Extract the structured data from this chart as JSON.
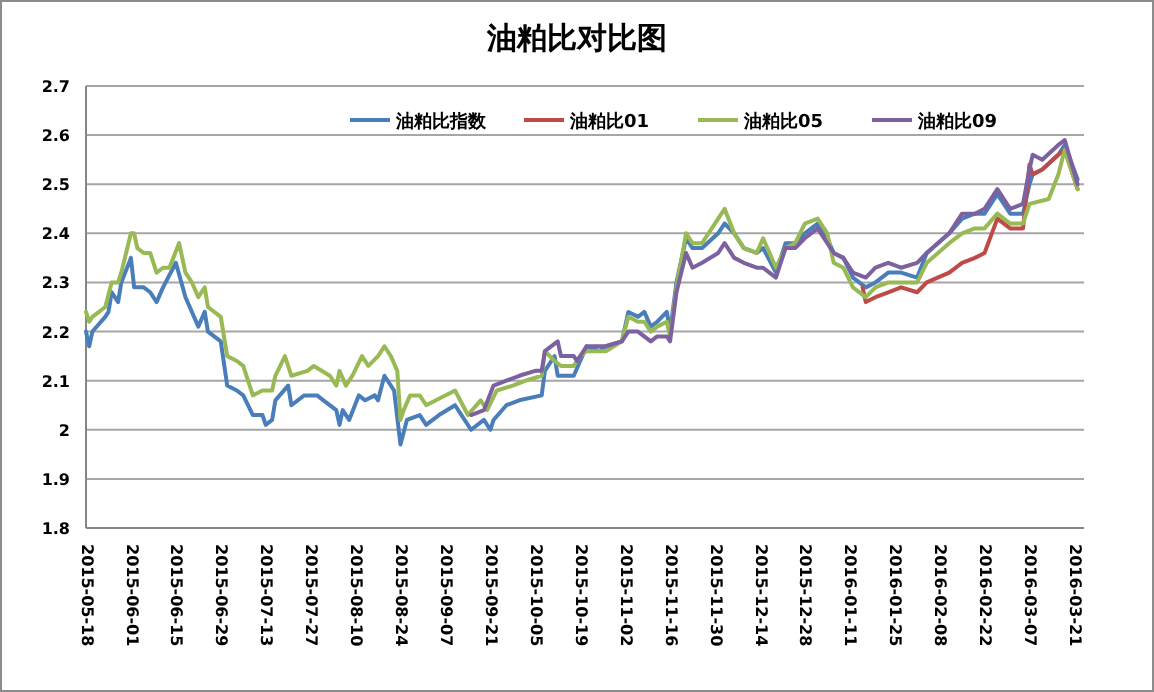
{
  "chart_data": {
    "type": "line",
    "title": "油粕比对比图",
    "xlim": [
      "2015-05-18",
      "2016-03-24"
    ],
    "xticks": [
      "2015-05-18",
      "2015-06-01",
      "2015-06-15",
      "2015-06-29",
      "2015-07-13",
      "2015-07-27",
      "2015-08-10",
      "2015-08-24",
      "2015-09-07",
      "2015-09-21",
      "2015-10-05",
      "2015-10-19",
      "2015-11-02",
      "2015-11-16",
      "2015-11-30",
      "2015-12-14",
      "2015-12-28",
      "2016-01-11",
      "2016-01-25",
      "2016-02-08",
      "2016-02-22",
      "2016-03-07",
      "2016-03-21"
    ],
    "ylim": [
      1.8,
      2.7
    ],
    "yticks": [
      1.8,
      1.9,
      2,
      2.1,
      2.2,
      2.3,
      2.4,
      2.5,
      2.6,
      2.7
    ],
    "grid": "y",
    "legend": "top",
    "marker": "none",
    "line_style": "solid",
    "series": [
      {
        "name": "油粕比指数",
        "color": "#4a7ebb",
        "x": [
          "2015-05-18",
          "2015-05-19",
          "2015-05-20",
          "2015-05-24",
          "2015-05-25",
          "2015-05-26",
          "2015-05-28",
          "2015-05-29",
          "2015-06-01",
          "2015-06-02",
          "2015-06-05",
          "2015-06-07",
          "2015-06-09",
          "2015-06-11",
          "2015-06-15",
          "2015-06-18",
          "2015-06-22",
          "2015-06-24",
          "2015-06-25",
          "2015-06-29",
          "2015-07-01",
          "2015-07-04",
          "2015-07-06",
          "2015-07-09",
          "2015-07-12",
          "2015-07-13",
          "2015-07-15",
          "2015-07-16",
          "2015-07-20",
          "2015-07-21",
          "2015-07-25",
          "2015-07-29",
          "2015-07-31",
          "2015-08-04",
          "2015-08-05",
          "2015-08-06",
          "2015-08-08",
          "2015-08-11",
          "2015-08-13",
          "2015-08-16",
          "2015-08-17",
          "2015-08-19",
          "2015-08-22",
          "2015-08-24",
          "2015-08-26",
          "2015-08-30",
          "2015-09-01",
          "2015-09-05",
          "2015-09-10",
          "2015-09-12",
          "2015-09-15",
          "2015-09-19",
          "2015-09-21",
          "2015-09-22",
          "2015-09-26",
          "2015-09-30",
          "2015-10-07",
          "2015-10-08",
          "2015-10-11",
          "2015-10-12",
          "2015-10-17",
          "2015-10-19",
          "2015-10-21",
          "2015-10-25",
          "2015-10-27",
          "2015-11-01",
          "2015-11-03",
          "2015-11-06",
          "2015-11-08",
          "2015-11-10",
          "2015-11-12",
          "2015-11-15",
          "2015-11-16",
          "2015-11-18",
          "2015-11-21",
          "2015-11-23",
          "2015-11-26",
          "2015-12-01",
          "2015-12-03",
          "2015-12-06",
          "2015-12-09",
          "2015-12-13",
          "2015-12-15",
          "2015-12-19",
          "2015-12-22",
          "2015-12-25",
          "2015-12-28",
          "2016-01-01",
          "2016-01-04",
          "2016-01-06",
          "2016-01-09",
          "2016-01-12",
          "2016-01-16",
          "2016-01-19",
          "2016-01-23",
          "2016-01-27",
          "2016-02-01",
          "2016-02-04",
          "2016-02-11",
          "2016-02-15",
          "2016-02-19",
          "2016-02-22",
          "2016-02-26",
          "2016-03-01",
          "2016-03-05",
          "2016-03-07",
          "2016-03-08",
          "2016-03-11",
          "2016-03-16",
          "2016-03-18",
          "2016-03-22"
        ],
        "values": [
          2.2,
          2.17,
          2.2,
          2.23,
          2.24,
          2.28,
          2.26,
          2.3,
          2.35,
          2.29,
          2.29,
          2.28,
          2.26,
          2.29,
          2.34,
          2.27,
          2.21,
          2.24,
          2.2,
          2.18,
          2.09,
          2.08,
          2.07,
          2.03,
          2.03,
          2.01,
          2.02,
          2.06,
          2.09,
          2.05,
          2.07,
          2.07,
          2.06,
          2.04,
          2.01,
          2.04,
          2.02,
          2.07,
          2.06,
          2.07,
          2.06,
          2.11,
          2.08,
          1.97,
          2.02,
          2.03,
          2.01,
          2.03,
          2.05,
          2.03,
          2.0,
          2.02,
          2.0,
          2.02,
          2.05,
          2.06,
          2.07,
          2.12,
          2.15,
          2.11,
          2.11,
          2.14,
          2.17,
          2.16,
          2.17,
          2.18,
          2.24,
          2.23,
          2.24,
          2.21,
          2.22,
          2.24,
          2.2,
          2.3,
          2.39,
          2.37,
          2.37,
          2.4,
          2.42,
          2.4,
          2.37,
          2.36,
          2.37,
          2.32,
          2.38,
          2.38,
          2.4,
          2.42,
          2.39,
          2.36,
          2.35,
          2.31,
          2.29,
          2.3,
          2.32,
          2.32,
          2.31,
          2.36,
          2.4,
          2.43,
          2.44,
          2.44,
          2.48,
          2.44,
          2.44,
          2.5,
          2.52,
          2.53,
          2.56,
          2.58,
          2.51
        ]
      },
      {
        "name": "油粕比01",
        "color": "#be4b48",
        "x": [
          "2016-01-15",
          "2016-01-16",
          "2016-01-19",
          "2016-01-23",
          "2016-01-27",
          "2016-02-01",
          "2016-02-04",
          "2016-02-11",
          "2016-02-15",
          "2016-02-19",
          "2016-02-22",
          "2016-02-26",
          "2016-03-01",
          "2016-03-05",
          "2016-03-07",
          "2016-03-08",
          "2016-03-11",
          "2016-03-16",
          "2016-03-18",
          "2016-03-22"
        ],
        "values": [
          2.29,
          2.26,
          2.27,
          2.28,
          2.29,
          2.28,
          2.3,
          2.32,
          2.34,
          2.35,
          2.36,
          2.43,
          2.41,
          2.41,
          2.54,
          2.52,
          2.53,
          2.56,
          2.57,
          2.49
        ]
      },
      {
        "name": "油粕比05",
        "color": "#98b954",
        "x": [
          "2015-05-18",
          "2015-05-19",
          "2015-05-20",
          "2015-05-24",
          "2015-05-26",
          "2015-05-28",
          "2015-05-29",
          "2015-06-01",
          "2015-06-02",
          "2015-06-03",
          "2015-06-05",
          "2015-06-07",
          "2015-06-09",
          "2015-06-11",
          "2015-06-13",
          "2015-06-16",
          "2015-06-18",
          "2015-06-20",
          "2015-06-22",
          "2015-06-24",
          "2015-06-25",
          "2015-06-29",
          "2015-07-01",
          "2015-07-04",
          "2015-07-06",
          "2015-07-09",
          "2015-07-12",
          "2015-07-15",
          "2015-07-16",
          "2015-07-19",
          "2015-07-21",
          "2015-07-26",
          "2015-07-28",
          "2015-08-02",
          "2015-08-04",
          "2015-08-05",
          "2015-08-07",
          "2015-08-09",
          "2015-08-12",
          "2015-08-14",
          "2015-08-17",
          "2015-08-19",
          "2015-08-21",
          "2015-08-23",
          "2015-08-24",
          "2015-08-25",
          "2015-08-27",
          "2015-08-30",
          "2015-09-01",
          "2015-09-10",
          "2015-09-14",
          "2015-09-18",
          "2015-09-20",
          "2015-09-23",
          "2015-09-28",
          "2015-10-02",
          "2015-10-07",
          "2015-10-08",
          "2015-10-11",
          "2015-10-13",
          "2015-10-17",
          "2015-10-19",
          "2015-10-21",
          "2015-10-27",
          "2015-11-01",
          "2015-11-03",
          "2015-11-06",
          "2015-11-08",
          "2015-11-10",
          "2015-11-12",
          "2015-11-15",
          "2015-11-16",
          "2015-11-18",
          "2015-11-21",
          "2015-11-23",
          "2015-11-26",
          "2015-12-01",
          "2015-12-03",
          "2015-12-06",
          "2015-12-09",
          "2015-12-13",
          "2015-12-15",
          "2015-12-19",
          "2015-12-22",
          "2015-12-25",
          "2015-12-28",
          "2016-01-01",
          "2016-01-04",
          "2016-01-06",
          "2016-01-09",
          "2016-01-12",
          "2016-01-16",
          "2016-01-19",
          "2016-01-23",
          "2016-01-27",
          "2016-02-01",
          "2016-02-04",
          "2016-02-11",
          "2016-02-15",
          "2016-02-19",
          "2016-02-22",
          "2016-02-26",
          "2016-03-01",
          "2016-03-05",
          "2016-03-07",
          "2016-03-13",
          "2016-03-16",
          "2016-03-18",
          "2016-03-22"
        ],
        "values": [
          2.24,
          2.22,
          2.23,
          2.25,
          2.3,
          2.3,
          2.32,
          2.4,
          2.4,
          2.37,
          2.36,
          2.36,
          2.32,
          2.33,
          2.33,
          2.38,
          2.32,
          2.3,
          2.27,
          2.29,
          2.25,
          2.23,
          2.15,
          2.14,
          2.13,
          2.07,
          2.08,
          2.08,
          2.11,
          2.15,
          2.11,
          2.12,
          2.13,
          2.11,
          2.09,
          2.12,
          2.09,
          2.11,
          2.15,
          2.13,
          2.15,
          2.17,
          2.15,
          2.12,
          2.02,
          2.04,
          2.07,
          2.07,
          2.05,
          2.08,
          2.03,
          2.06,
          2.04,
          2.08,
          2.09,
          2.1,
          2.11,
          2.16,
          2.14,
          2.13,
          2.13,
          2.15,
          2.16,
          2.16,
          2.18,
          2.23,
          2.22,
          2.22,
          2.2,
          2.21,
          2.22,
          2.19,
          2.29,
          2.4,
          2.38,
          2.38,
          2.43,
          2.45,
          2.4,
          2.37,
          2.36,
          2.39,
          2.33,
          2.37,
          2.38,
          2.42,
          2.43,
          2.4,
          2.34,
          2.33,
          2.29,
          2.27,
          2.29,
          2.3,
          2.3,
          2.3,
          2.34,
          2.38,
          2.4,
          2.41,
          2.41,
          2.44,
          2.42,
          2.42,
          2.46,
          2.47,
          2.52,
          2.57,
          2.49
        ]
      },
      {
        "name": "油粕比09",
        "color": "#7d60a0",
        "x": [
          "2015-09-15",
          "2015-09-19",
          "2015-09-22",
          "2015-09-26",
          "2015-09-30",
          "2015-10-05",
          "2015-10-07",
          "2015-10-08",
          "2015-10-12",
          "2015-10-13",
          "2015-10-17",
          "2015-10-18",
          "2015-10-21",
          "2015-10-25",
          "2015-10-27",
          "2015-11-01",
          "2015-11-03",
          "2015-11-06",
          "2015-11-10",
          "2015-11-12",
          "2015-11-15",
          "2015-11-16",
          "2015-11-18",
          "2015-11-21",
          "2015-11-23",
          "2015-11-26",
          "2015-12-01",
          "2015-12-03",
          "2015-12-06",
          "2015-12-09",
          "2015-12-13",
          "2015-12-15",
          "2015-12-19",
          "2015-12-22",
          "2015-12-25",
          "2015-12-28",
          "2016-01-01",
          "2016-01-04",
          "2016-01-06",
          "2016-01-09",
          "2016-01-12",
          "2016-01-16",
          "2016-01-19",
          "2016-01-23",
          "2016-01-27",
          "2016-02-01",
          "2016-02-04",
          "2016-02-11",
          "2016-02-15",
          "2016-02-19",
          "2016-02-22",
          "2016-02-26",
          "2016-03-01",
          "2016-03-05",
          "2016-03-07",
          "2016-03-08",
          "2016-03-11",
          "2016-03-16",
          "2016-03-18",
          "2016-03-22"
        ],
        "values": [
          2.03,
          2.04,
          2.09,
          2.1,
          2.11,
          2.12,
          2.12,
          2.16,
          2.18,
          2.15,
          2.15,
          2.14,
          2.17,
          2.17,
          2.17,
          2.18,
          2.2,
          2.2,
          2.18,
          2.19,
          2.19,
          2.18,
          2.28,
          2.36,
          2.33,
          2.34,
          2.36,
          2.38,
          2.35,
          2.34,
          2.33,
          2.33,
          2.31,
          2.37,
          2.37,
          2.39,
          2.41,
          2.38,
          2.36,
          2.35,
          2.32,
          2.31,
          2.33,
          2.34,
          2.33,
          2.34,
          2.36,
          2.4,
          2.44,
          2.44,
          2.45,
          2.49,
          2.45,
          2.46,
          2.53,
          2.56,
          2.55,
          2.58,
          2.59,
          2.5
        ]
      }
    ]
  }
}
